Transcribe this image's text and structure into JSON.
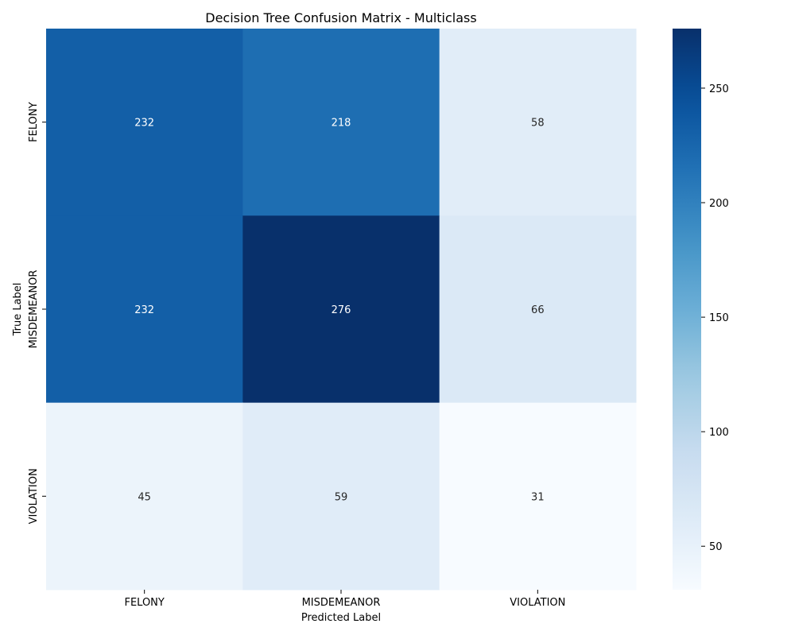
{
  "chart_data": {
    "type": "heatmap",
    "title": "Decision Tree Confusion Matrix - Multiclass",
    "xlabel": "Predicted Label",
    "ylabel": "True Label",
    "x_categories": [
      "FELONY",
      "MISDEMEANOR",
      "VIOLATION"
    ],
    "y_categories": [
      "FELONY",
      "MISDEMEANOR",
      "VIOLATION"
    ],
    "values": [
      [
        232,
        218,
        58
      ],
      [
        232,
        276,
        66
      ],
      [
        45,
        59,
        31
      ]
    ],
    "colormap": "Blues",
    "colorbar": {
      "min": 31,
      "max": 276,
      "ticks": [
        50,
        100,
        150,
        200,
        250
      ]
    },
    "annotation_colors": {
      "dark": "#262626",
      "light": "#ffffff"
    }
  }
}
